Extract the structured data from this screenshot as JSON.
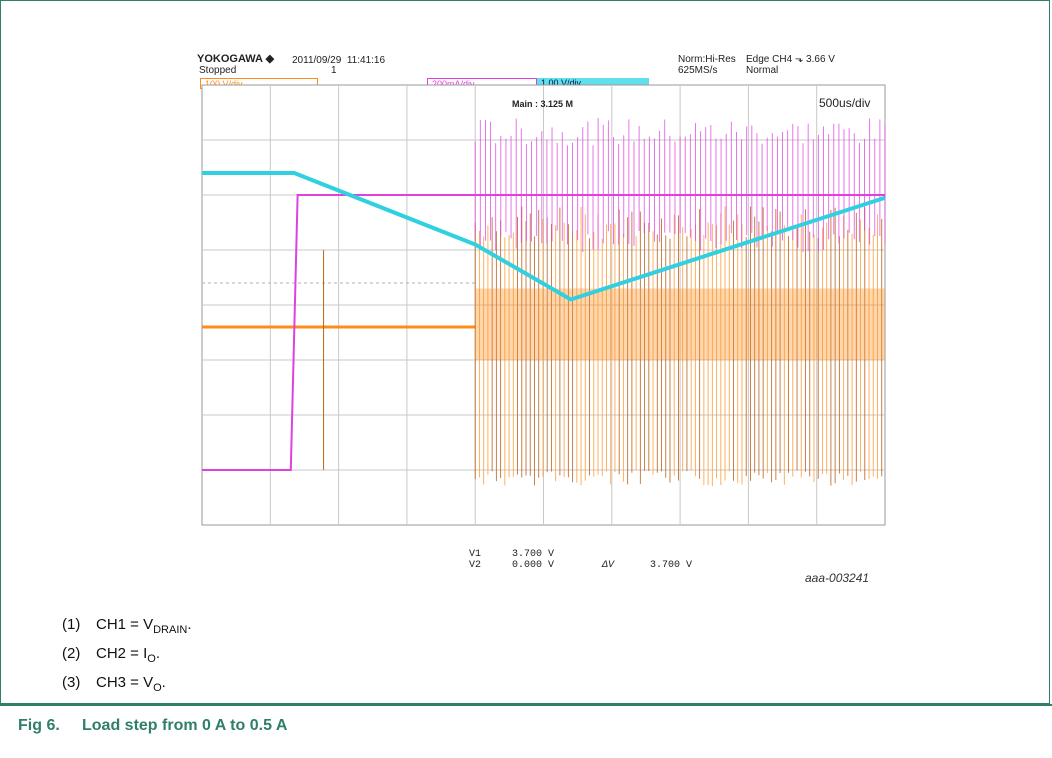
{
  "header": {
    "brand": "YOKOGAWA ◆",
    "datetime": "2011/09/29  11:41:16",
    "status": "Stopped",
    "record": "1",
    "acq_mode": "Norm:Hi-Res",
    "sample_rate": "625MS/s",
    "trigger": "Edge CH4 ⬎ 3.66 V",
    "trigger_mode": "Normal",
    "ch1_scale": "100 V/div",
    "ch2_scale": "200mA/div",
    "ch3_scale": "1.00 V/div",
    "main_label": "Main : 3.125 M",
    "timebase": "500us/div"
  },
  "cursor": {
    "v1_label": "V1",
    "v1_value": "3.700 V",
    "v2_label": "V2",
    "v2_value": "0.000 V",
    "dv_label": "ΔV",
    "dv_value": "3.700 V"
  },
  "figure_id": "aaa-003241",
  "notes": [
    {
      "num": "(1)",
      "pre": "CH1 = V",
      "sub": "DRAIN",
      "post": "."
    },
    {
      "num": "(2)",
      "pre": "CH2 = I",
      "sub": "O",
      "post": "."
    },
    {
      "num": "(3)",
      "pre": "CH3 = V",
      "sub": "O",
      "post": "."
    }
  ],
  "caption": "Fig 6.     Load step from 0 A to 0.5 A",
  "chart_data": {
    "type": "line",
    "title": "",
    "x_unit": "div",
    "xlim": [
      0,
      10
    ],
    "ylim": [
      -4,
      4
    ],
    "grid": true,
    "colors": {
      "ch1": "#ff8c1a",
      "ch2": "#e040e0",
      "ch3": "#30d0e0"
    },
    "series": [
      {
        "name": "CH3",
        "x": [
          0,
          1.35,
          4,
          5.4,
          10
        ],
        "y": [
          2.4,
          2.4,
          1.1,
          0.1,
          1.95
        ]
      },
      {
        "name": "CH2",
        "x": [
          0,
          1.3,
          1.4,
          4,
          10
        ],
        "y": [
          -3.0,
          -3.0,
          2.0,
          2.0,
          2.0
        ]
      },
      {
        "name": "CH1",
        "x": [
          0,
          4,
          10
        ],
        "y": [
          -0.4,
          -0.4,
          -0.4
        ]
      }
    ],
    "markers": {
      "ch1_ground": -3.05,
      "trigger_level": 0.4
    }
  }
}
